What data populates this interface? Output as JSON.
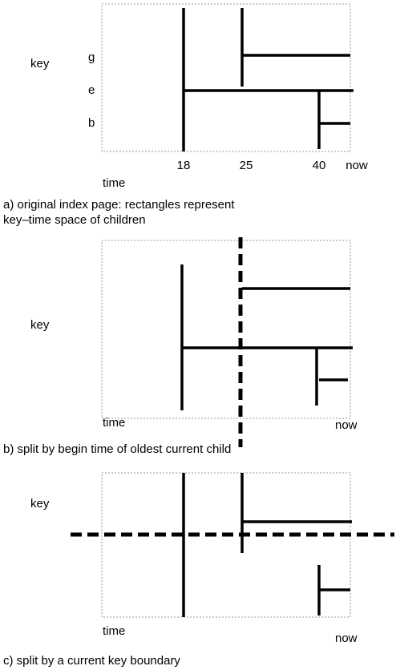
{
  "panels": [
    {
      "key_label": "key",
      "key_values": [
        "g",
        "e",
        "b"
      ],
      "time_label": "time",
      "time_ticks": [
        "18",
        "25",
        "40",
        "now"
      ],
      "caption": [
        "a) original index page: rectangles represent",
        "key–time space of children"
      ]
    },
    {
      "key_label": "key",
      "time_label": "time",
      "now_label": "now",
      "caption": "b)  split by begin time of oldest current child"
    },
    {
      "key_label": "key",
      "time_label": "time",
      "now_label": "now",
      "caption": "c)  split by a current key boundary"
    }
  ]
}
